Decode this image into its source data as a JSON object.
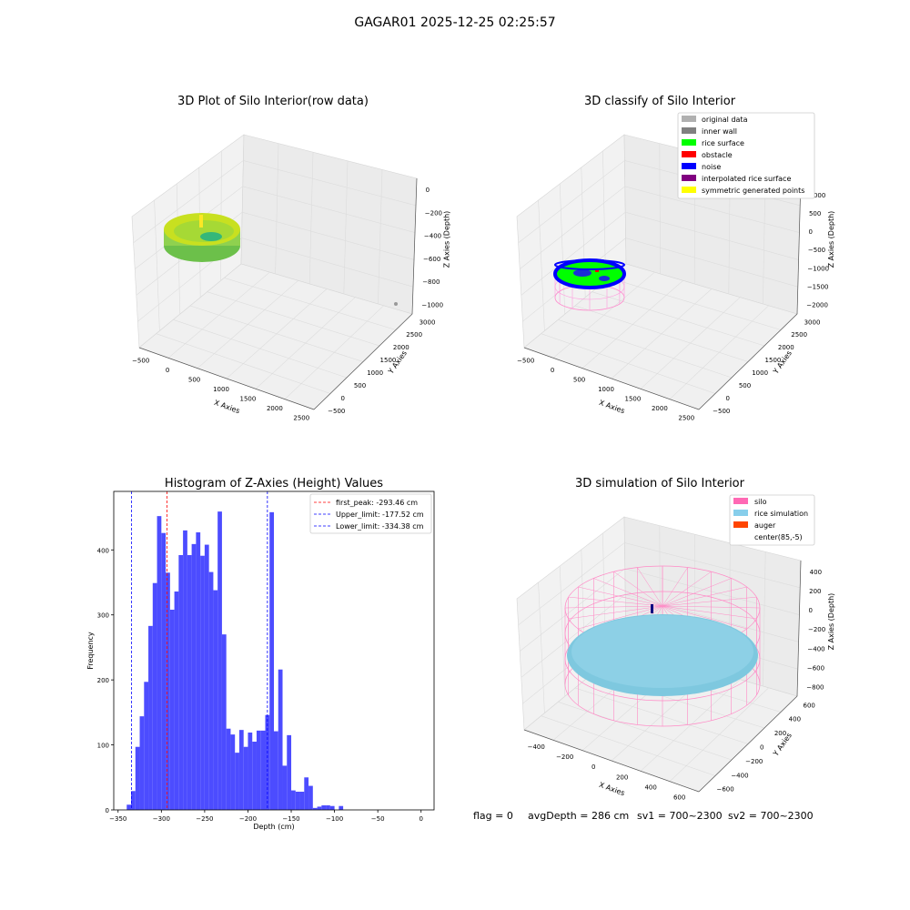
{
  "suptitle": "GAGAR01 2025-12-25 02:25:57",
  "footer": {
    "flag": "flag = 0",
    "avg": "avgDepth = 286 cm",
    "sv1": "sv1 = 700~2300",
    "sv2": "sv2 = 700~2300"
  },
  "chart_data": [
    {
      "type": "scatter",
      "title": "3D Plot of Silo Interior(row data)",
      "xlabel": "X Axies",
      "ylabel": "Y Axies",
      "zlabel": "Z Axies (Depth)",
      "xticks": [
        "−500",
        "0",
        "500",
        "1000",
        "1500",
        "2000",
        "2500"
      ],
      "yticks": [
        "−500",
        "0",
        "500",
        "1000",
        "1500",
        "2000",
        "2500",
        "3000"
      ],
      "zticks": [
        "0",
        "−200",
        "−400",
        "−600",
        "−800",
        "−1000"
      ],
      "xlim": [
        -600,
        2600
      ],
      "ylim": [
        -600,
        3200
      ],
      "zlim": [
        -1100,
        50
      ],
      "colormap": "viridis (yellow-green surface)"
    },
    {
      "type": "scatter",
      "title": "3D classify of Silo Interior",
      "xlabel": "X Axies",
      "ylabel": "Y Axies",
      "zlabel": "Z Axies (Depth)",
      "xticks": [
        "−500",
        "0",
        "500",
        "1000",
        "1500",
        "2000",
        "2500"
      ],
      "yticks": [
        "−500",
        "0",
        "500",
        "1000",
        "1500",
        "2000",
        "2500",
        "3000"
      ],
      "zticks": [
        "1000",
        "500",
        "0",
        "−500",
        "−1000",
        "−1500",
        "−2000"
      ],
      "legend": [
        {
          "label": "original data",
          "color": "#b0b0b0"
        },
        {
          "label": "inner wall",
          "color": "#808080"
        },
        {
          "label": "rice surface",
          "color": "#00ff00"
        },
        {
          "label": "obstacle",
          "color": "#ff0000"
        },
        {
          "label": "noise",
          "color": "#0000ff"
        },
        {
          "label": "interpolated rice surface",
          "color": "#800080"
        },
        {
          "label": "symmetric generated points",
          "color": "#ffff00"
        }
      ],
      "legend_position": "top-right"
    },
    {
      "type": "bar",
      "title": "Histogram of Z-Axies (Height) Values",
      "xlabel": "Depth (cm)",
      "ylabel": "Frequency",
      "xlim": [
        -355,
        15
      ],
      "ylim": [
        0,
        490
      ],
      "xticks": [
        -350,
        -300,
        -250,
        -200,
        -150,
        -100,
        -50,
        0
      ],
      "yticks": [
        0,
        100,
        200,
        300,
        400
      ],
      "bar_color": "#4c4cff",
      "bin_start": -340,
      "bin_width": 5,
      "values": [
        8,
        29,
        97,
        144,
        197,
        283,
        349,
        452,
        426,
        365,
        308,
        336,
        392,
        430,
        392,
        409,
        427,
        391,
        408,
        366,
        338,
        459,
        270,
        125,
        116,
        88,
        123,
        97,
        119,
        105,
        122,
        122,
        146,
        458,
        121,
        216,
        68,
        115,
        30,
        28,
        28,
        50,
        37,
        3,
        5,
        7,
        7,
        6,
        0,
        6
      ],
      "vlines": [
        {
          "label": "first_peak: -293.46 cm",
          "value": -293.46,
          "color": "#ff0000"
        },
        {
          "label": "Upper_limit: -177.52 cm",
          "value": -177.52,
          "color": "#0000ff"
        },
        {
          "label": "Lower_limit: -334.38 cm",
          "value": -334.38,
          "color": "#0000ff"
        }
      ],
      "legend_position": "top-right"
    },
    {
      "type": "scatter",
      "title": "3D simulation of Silo Interior",
      "xlabel": "X Axies",
      "ylabel": "Y Axies",
      "zlabel": "Z Axies (Depth)",
      "xticks": [
        "−400",
        "−200",
        "0",
        "200",
        "400",
        "600"
      ],
      "yticks": [
        "−600",
        "−400",
        "−200",
        "0",
        "200",
        "400",
        "600"
      ],
      "zticks": [
        "400",
        "200",
        "0",
        "−200",
        "−400",
        "−600",
        "−800"
      ],
      "legend": [
        {
          "label": "silo",
          "color": "#ff69b4"
        },
        {
          "label": "rice simulation",
          "color": "#87ceeb"
        },
        {
          "label": "auger",
          "color": "#ff4500"
        },
        {
          "label": "center(85,-5)",
          "color": ""
        }
      ],
      "legend_position": "top-right"
    }
  ]
}
